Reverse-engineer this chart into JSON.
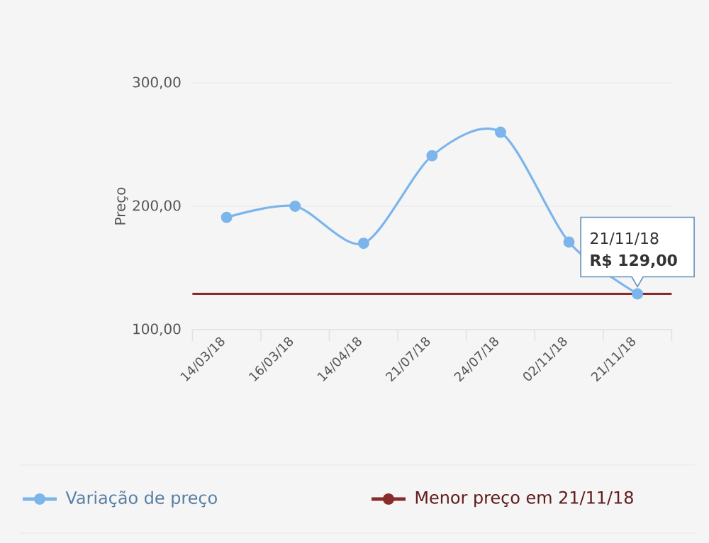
{
  "chart_data": {
    "type": "line",
    "ylabel": "Preço",
    "categories": [
      "14/03/18",
      "16/03/18",
      "14/04/18",
      "21/07/18",
      "24/07/18",
      "02/11/18",
      "21/11/18"
    ],
    "series": [
      {
        "name": "Variação de preço",
        "color": "#7cb5ec",
        "values": [
          191,
          200,
          170,
          241,
          260,
          171,
          129
        ]
      }
    ],
    "ylim": [
      100,
      300
    ],
    "yticks": [
      {
        "value": 100,
        "label": "100,00"
      },
      {
        "value": 200,
        "label": "200,00"
      },
      {
        "value": 300,
        "label": "300,00"
      }
    ],
    "grid": "y",
    "marker": "circle",
    "legend": "bottom",
    "line_style": "solid",
    "ref_lines": [
      {
        "axis": "y",
        "value": 129,
        "label": "Menor preço em 21/11/18",
        "color": "#8b2a2a"
      }
    ],
    "annotations": [
      "21/11/18",
      {
        "text": "R$ 129,00",
        "x": "21/11/18",
        "y": 129
      }
    ]
  }
}
